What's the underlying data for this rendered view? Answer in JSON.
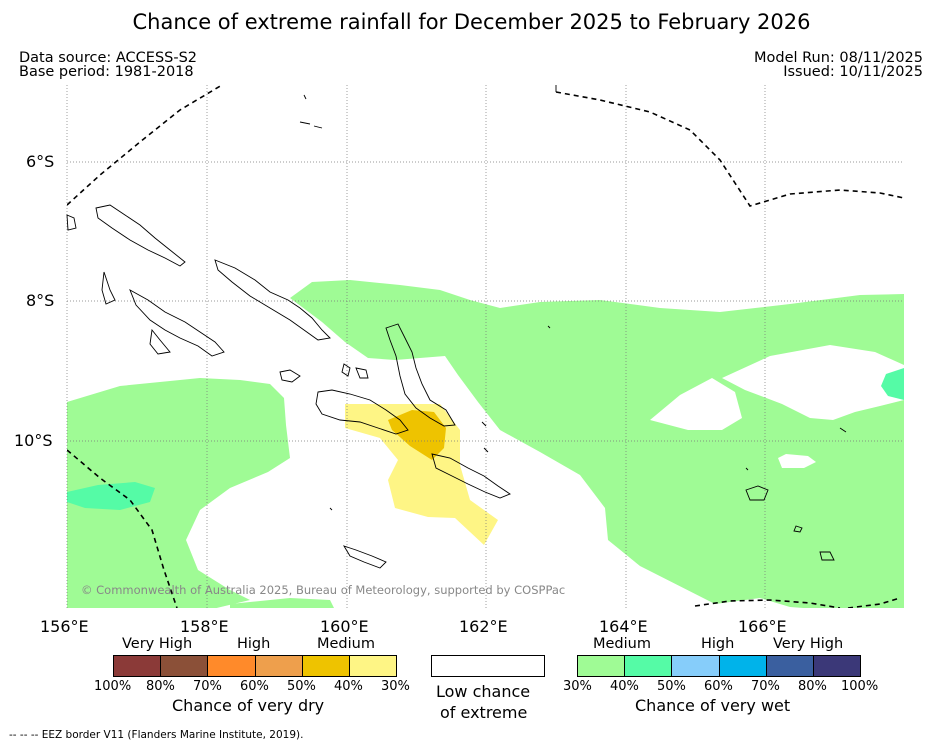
{
  "title": "Chance of extreme rainfall for December 2025 to February 2026",
  "meta": {
    "data_source": "Data source: ACCESS-S2",
    "base_period": "Base period: 1981-2018",
    "model_run": "Model Run: 08/11/2025",
    "issued": "Issued: 10/11/2025"
  },
  "map": {
    "lon_ticks": [
      "156°E",
      "158°E",
      "160°E",
      "162°E",
      "164°E",
      "166°E"
    ],
    "lat_ticks": [
      "6°S",
      "8°S",
      "10°S"
    ],
    "copyright": "© Commonwealth of Australia 2025, Bureau of Meteorology, supported by COSPPac"
  },
  "legend_dry": {
    "headers": [
      "Very High",
      "High",
      "Medium"
    ],
    "colors": [
      "#8b3a38",
      "#8b5038",
      "#ff8a2a",
      "#ee9f4c",
      "#eec300",
      "#fef585"
    ],
    "ticks": [
      "100%",
      "80%",
      "70%",
      "60%",
      "50%",
      "40%",
      "30%"
    ],
    "title": "Chance of very dry"
  },
  "legend_low": {
    "line1": "Low chance",
    "line2": "of extreme",
    "color": "#ffffff"
  },
  "legend_wet": {
    "headers": [
      "Medium",
      "High",
      "Very High"
    ],
    "colors": [
      "#9ffb95",
      "#55fba6",
      "#86cdfa",
      "#00b3ea",
      "#3a5f9f",
      "#3b3878"
    ],
    "ticks": [
      "30%",
      "40%",
      "50%",
      "60%",
      "70%",
      "80%",
      "100%"
    ],
    "title": "Chance of very wet"
  },
  "footer": "-- -- -- EEZ border V11 (Flanders Marine Institute, 2019)."
}
